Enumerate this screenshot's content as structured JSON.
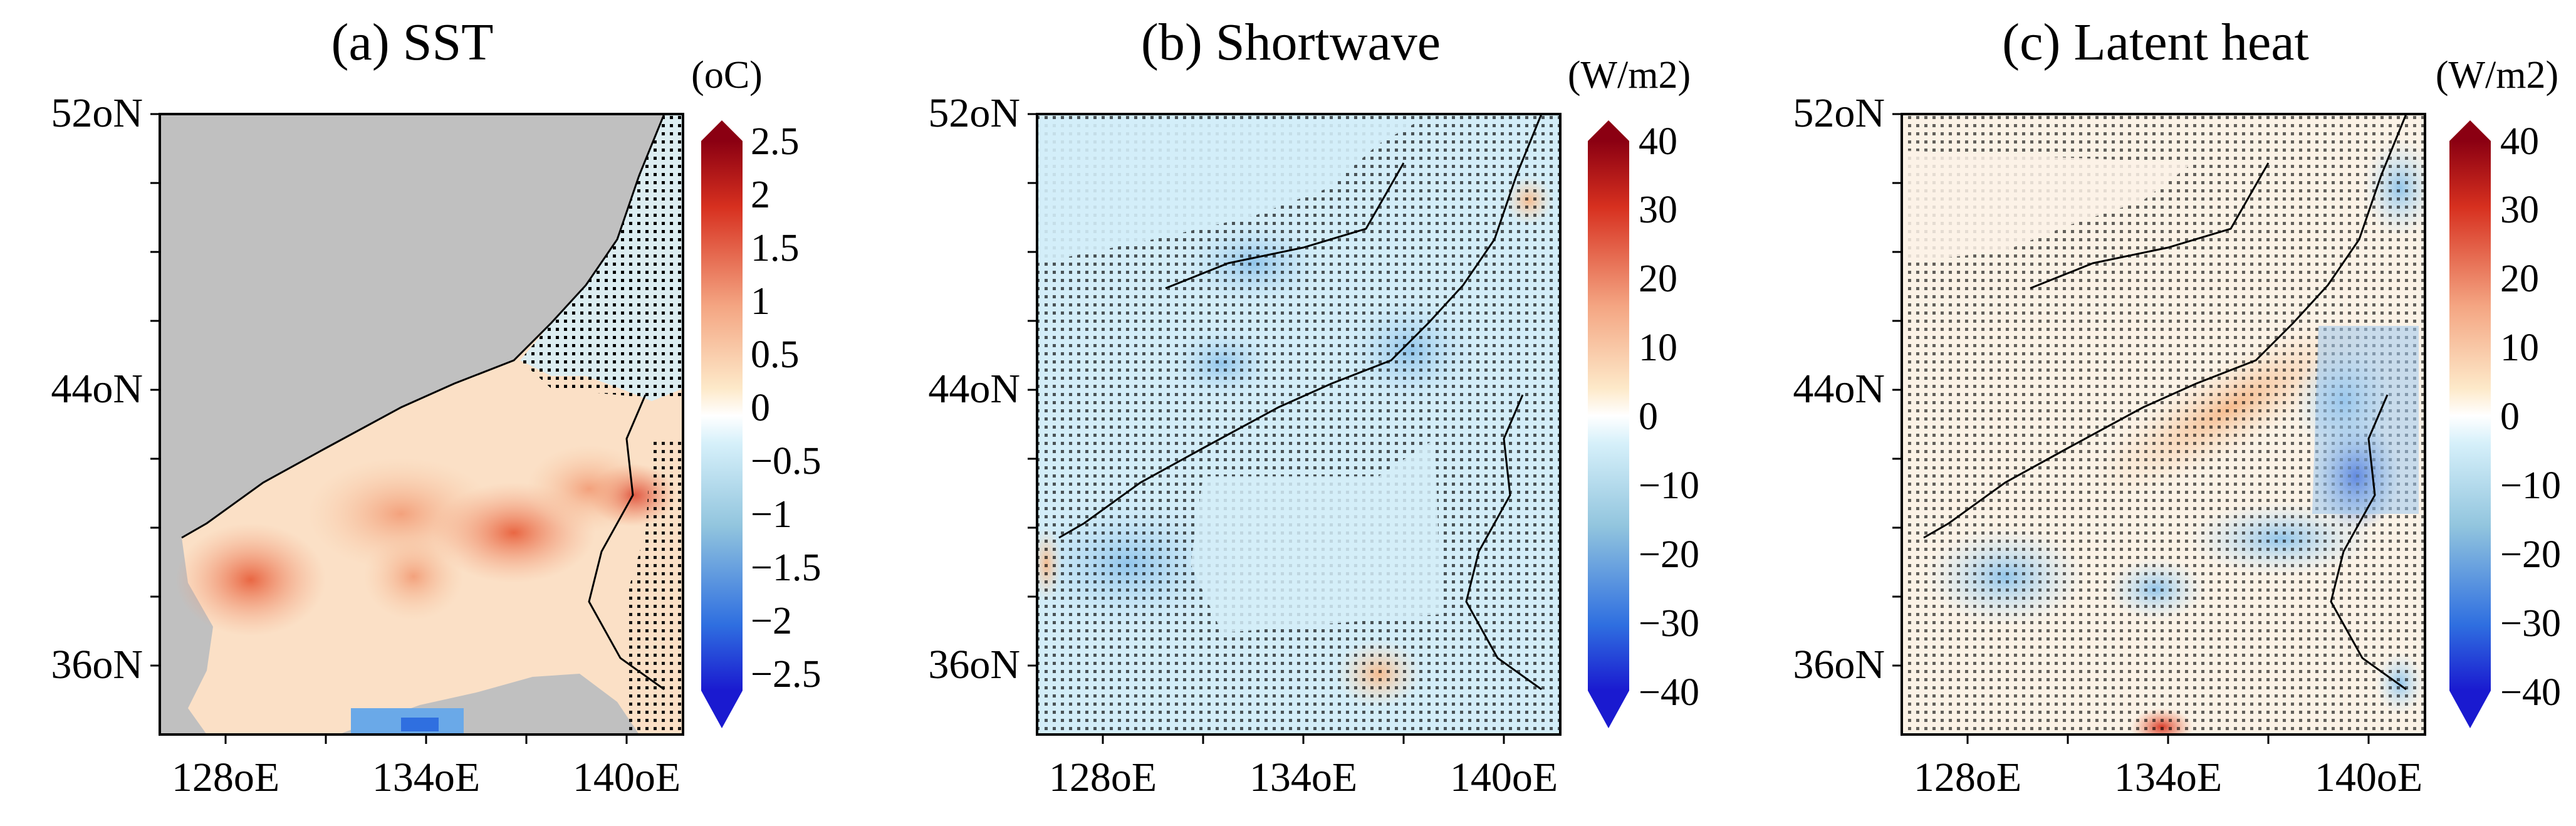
{
  "panels": [
    {
      "title": "(a) SST",
      "unit": "(oC)",
      "colorbar_ticks": [
        "2.5",
        "2",
        "1.5",
        "1",
        "0.5",
        "0",
        "−0.5",
        "−1",
        "−1.5",
        "−2",
        "−2.5"
      ],
      "lat_labels": [
        "52oN",
        "44oN",
        "36oN"
      ],
      "lon_labels": [
        "128oE",
        "134oE",
        "140oE"
      ],
      "land_color": "#c0c0c0"
    },
    {
      "title": "(b) Shortwave",
      "unit": "(W/m2)",
      "colorbar_ticks": [
        "40",
        "30",
        "20",
        "10",
        "0",
        "−10",
        "−20",
        "−30",
        "−40"
      ],
      "lat_labels": [
        "52oN",
        "44oN",
        "36oN"
      ],
      "lon_labels": [
        "128oE",
        "134oE",
        "140oE"
      ]
    },
    {
      "title": "(c) Latent heat",
      "unit": "(W/m2)",
      "colorbar_ticks": [
        "40",
        "30",
        "20",
        "10",
        "0",
        "−10",
        "−20",
        "−30",
        "−40"
      ],
      "lat_labels": [
        "52oN",
        "44oN",
        "36oN"
      ],
      "lon_labels": [
        "128oE",
        "134oE",
        "140oE"
      ]
    }
  ],
  "colors": {
    "strong_positive": "#a50f15",
    "positive": "#f4a582",
    "neutral": "#ffffff",
    "negative": "#92c5de",
    "strong_negative": "#2c2cd6"
  }
}
